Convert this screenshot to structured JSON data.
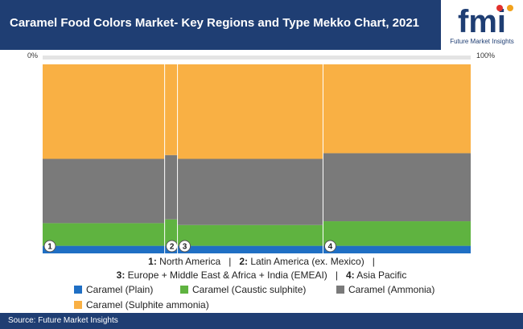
{
  "header": {
    "title": "Caramel Food Colors Market- Key Regions and Type Mekko Chart, 2021",
    "logo_text": "fmi",
    "logo_subtitle": "Future Market Insights"
  },
  "axis": {
    "left_label": "0%",
    "right_label": "100%"
  },
  "colors": {
    "header_bg": "#1f3e73",
    "plain": "#1f6fc4",
    "caustic": "#5fb340",
    "ammonia": "#7a7a7a",
    "sulphite_ammonia": "#f9b044"
  },
  "chart_data": {
    "type": "mekko",
    "title": "Caramel Food Colors Market- Key Regions and Type Mekko Chart, 2021",
    "categories": [
      "1",
      "2",
      "3",
      "4"
    ],
    "category_names": [
      "North America",
      "Latin America (ex. Mexico)",
      "Europe + Middle East & Africa + India (EMEAI)",
      "Asia Pacific"
    ],
    "widths": [
      28.5,
      3.0,
      34.0,
      34.5
    ],
    "series": [
      {
        "name": "Caramel (Plain)",
        "values": [
          4,
          4,
          4,
          4
        ]
      },
      {
        "name": "Caramel (Caustic sulphite)",
        "values": [
          12,
          14,
          11,
          13
        ]
      },
      {
        "name": "Caramel (Ammonia)",
        "values": [
          34,
          34,
          35,
          36
        ]
      },
      {
        "name": "Caramel (Sulphite ammonia)",
        "values": [
          50,
          48,
          50,
          47
        ]
      }
    ],
    "xlim": [
      0,
      100
    ],
    "ylim": [
      0,
      100
    ]
  },
  "region_legend": {
    "line1_parts": [
      "1:",
      " North America",
      "2:",
      " Latin America (ex. Mexico)"
    ],
    "line2_parts": [
      "3:",
      " Europe + Middle East & Africa + India (EMEAI)",
      "4:",
      " Asia Pacific"
    ],
    "separator": "|"
  },
  "source": "Source: Future Market Insights"
}
